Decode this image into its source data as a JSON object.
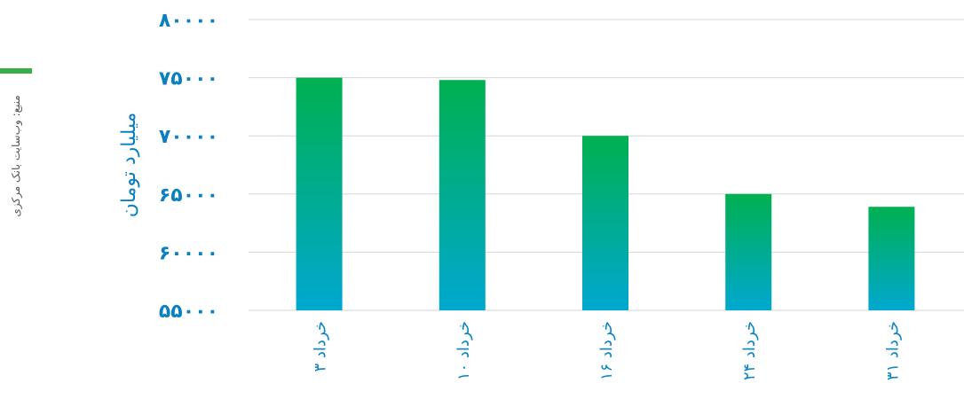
{
  "source": "منبع: وب‌سایت بانک مرکزی",
  "colors": {
    "accent_green": "#3aae4a",
    "bar_top": "#00b050",
    "bar_bottom": "#00a8d0",
    "axis_text": "#0b7fc0"
  },
  "chart_data": {
    "type": "bar",
    "categories": [
      "۳ خرداد",
      "۱۰ خرداد",
      "۱۶ خرداد",
      "۲۴ خرداد",
      "۳۱ خرداد"
    ],
    "values": [
      75000,
      74800,
      70000,
      65000,
      63900
    ],
    "ylabel": "میلیارد تومان",
    "yticks": [
      "۸۰۰۰۰",
      "۷۵۰۰۰",
      "۷۰۰۰۰",
      "۶۵۰۰۰",
      "۶۰۰۰۰",
      "۵۵۰۰۰"
    ],
    "ytick_values": [
      80000,
      75000,
      70000,
      65000,
      60000,
      55000
    ],
    "ylim": [
      55000,
      80000
    ],
    "grid": true,
    "legend": "none"
  }
}
